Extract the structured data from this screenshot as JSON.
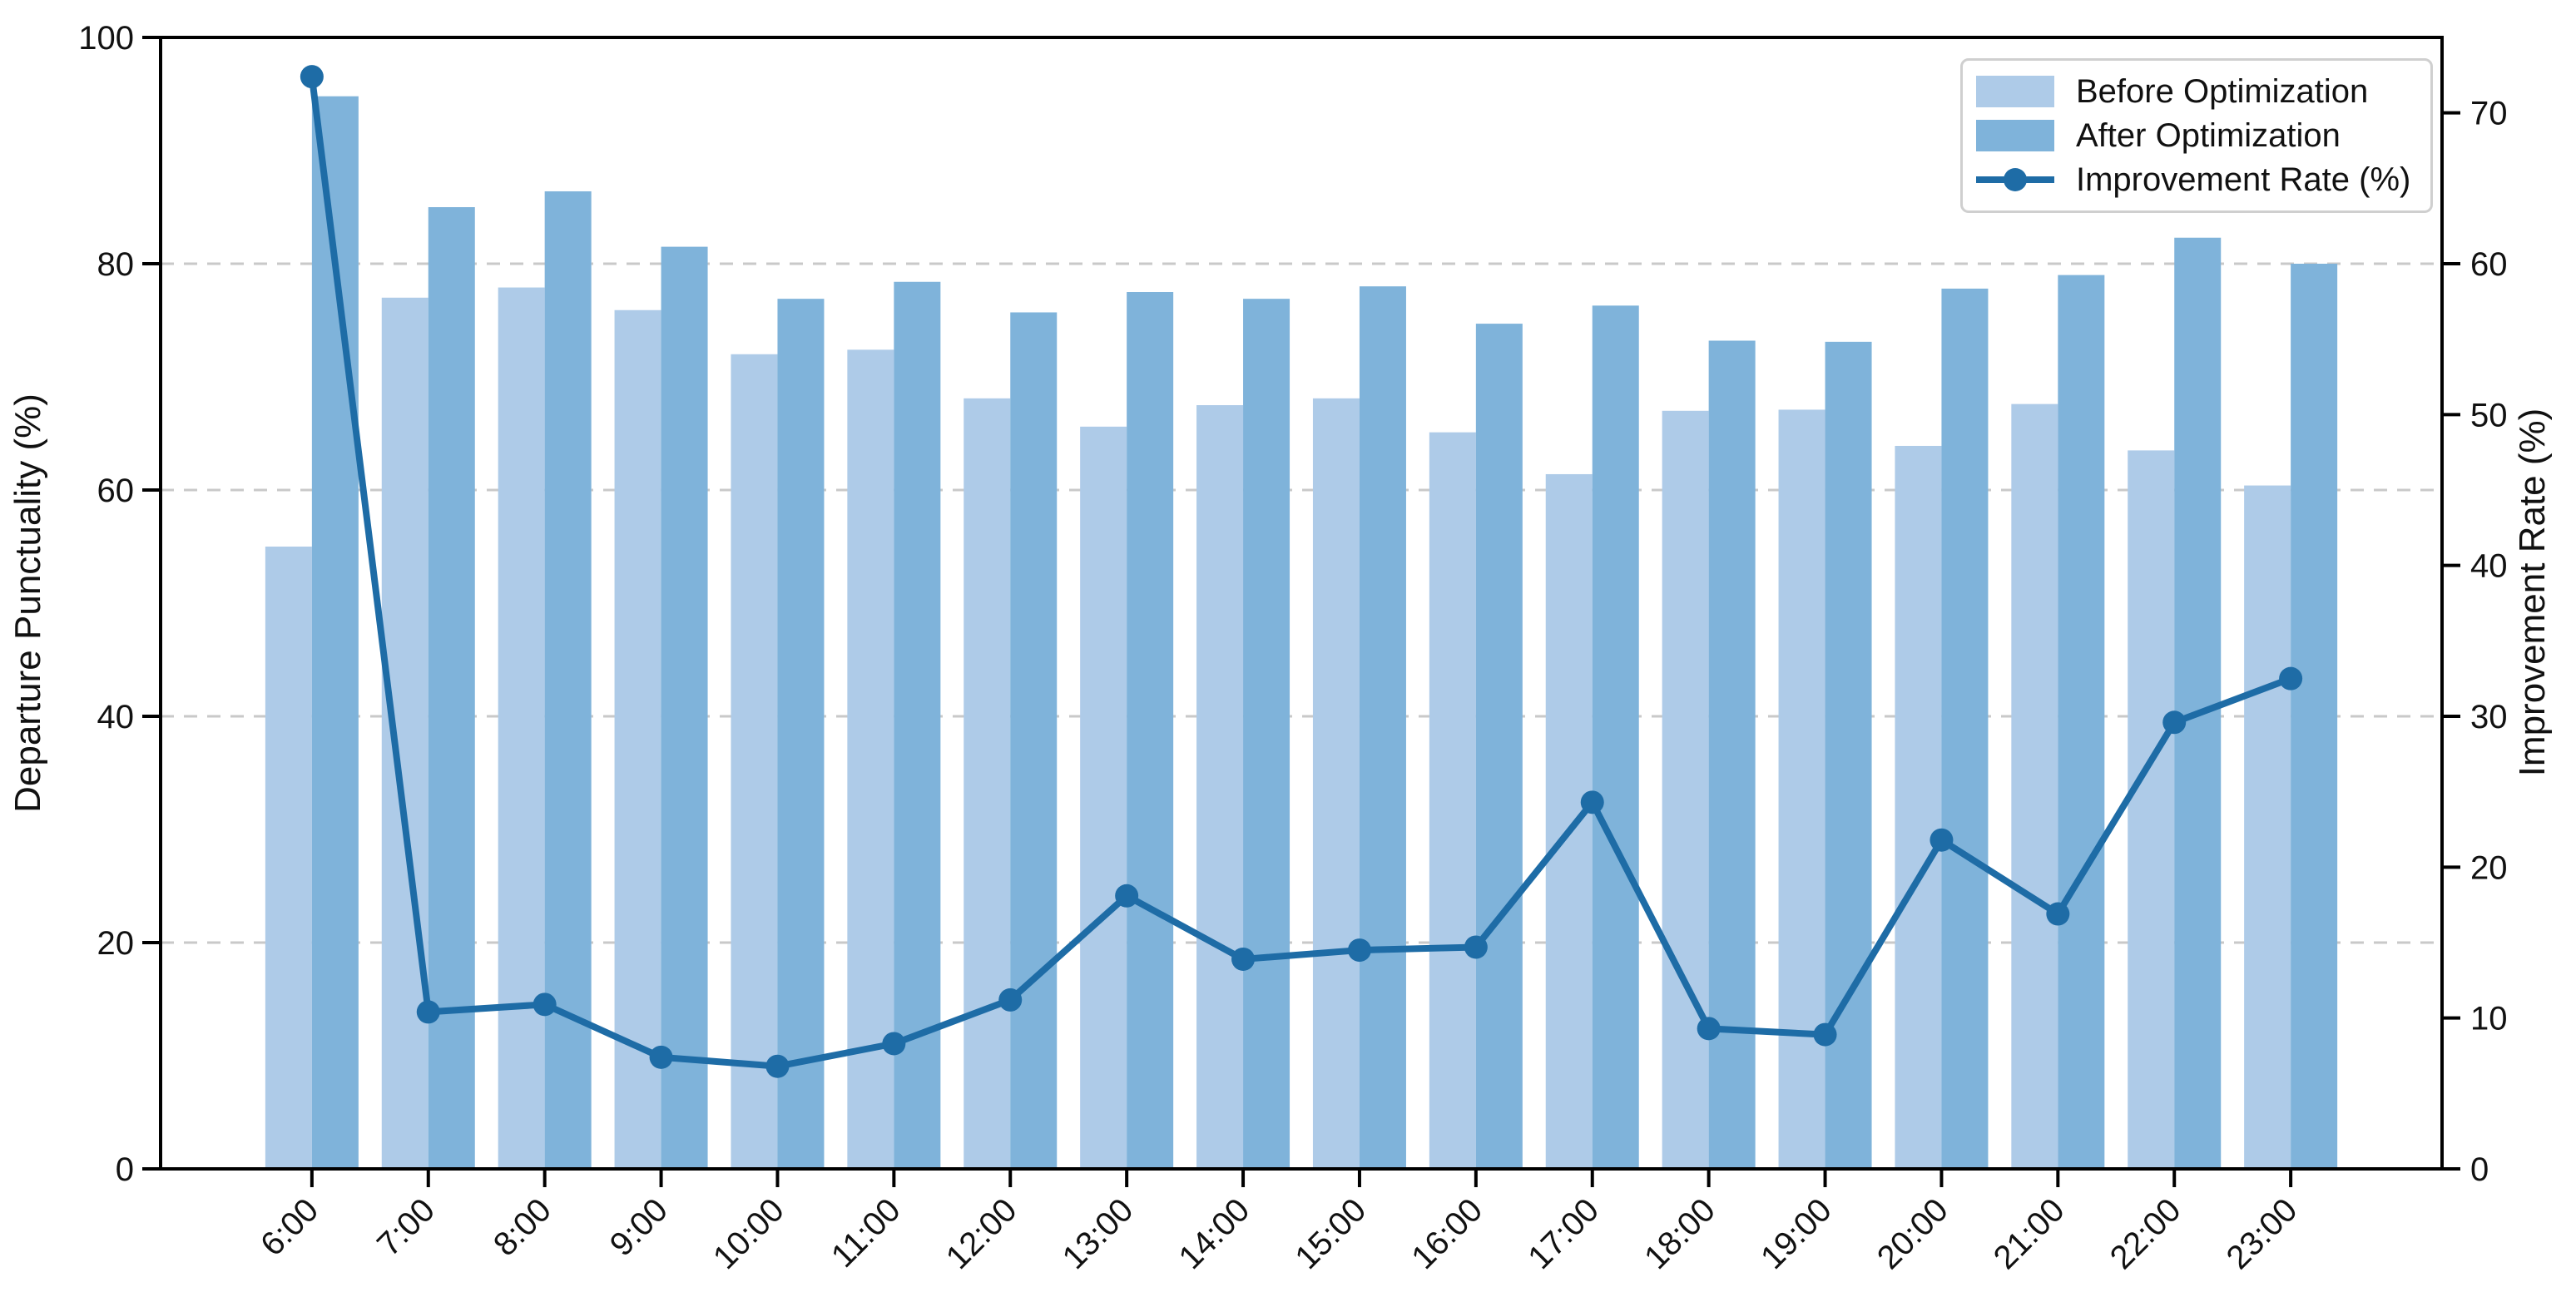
{
  "figure": {
    "background": "#ffffff",
    "text_color": "#111111"
  },
  "legend": {
    "items": [
      {
        "label": "Before Optimization",
        "type": "swatch",
        "color": "#aecbe8"
      },
      {
        "label": "After Optimization",
        "type": "swatch",
        "color": "#7fb3da"
      },
      {
        "label": "Improvement Rate (%)",
        "type": "line-marker",
        "color": "#1e6ca6"
      }
    ]
  },
  "chart_data": {
    "type": "bar",
    "subtype": "grouped-bars-with-line-overlay",
    "categories": [
      "6:00",
      "7:00",
      "8:00",
      "9:00",
      "10:00",
      "11:00",
      "12:00",
      "13:00",
      "14:00",
      "15:00",
      "16:00",
      "17:00",
      "18:00",
      "19:00",
      "20:00",
      "21:00",
      "22:00",
      "23:00"
    ],
    "series": [
      {
        "name": "Before Optimization",
        "type": "bar",
        "axis": "left",
        "color": "#aecbe8",
        "values": [
          55.0,
          77.0,
          77.9,
          75.9,
          72.0,
          72.4,
          68.1,
          65.6,
          67.5,
          68.1,
          65.1,
          61.4,
          67.0,
          67.1,
          63.9,
          67.6,
          63.5,
          60.4
        ]
      },
      {
        "name": "After Optimization",
        "type": "bar",
        "axis": "left",
        "color": "#7fb3da",
        "values": [
          94.8,
          85.0,
          86.4,
          81.5,
          76.9,
          78.4,
          75.7,
          77.5,
          76.9,
          78.0,
          74.7,
          76.3,
          73.2,
          73.1,
          77.8,
          79.0,
          82.3,
          80.0
        ]
      },
      {
        "name": "Improvement Rate (%)",
        "type": "line",
        "axis": "right",
        "color": "#1e6ca6",
        "marker": "circle",
        "values": [
          72.4,
          10.4,
          10.9,
          7.4,
          6.8,
          8.3,
          11.2,
          18.1,
          13.9,
          14.5,
          14.7,
          24.3,
          9.3,
          8.9,
          21.8,
          16.9,
          29.6,
          32.5
        ]
      }
    ],
    "left_axis": {
      "label": "Departure Punctuality (%)",
      "min": 0,
      "max": 100,
      "ticks": [
        0,
        20,
        40,
        60,
        80,
        100
      ]
    },
    "right_axis": {
      "label": "Improvement Rate (%)",
      "min": 0,
      "max": 75,
      "ticks": [
        0,
        10,
        20,
        30,
        40,
        50,
        60,
        70
      ]
    },
    "x_axis": {
      "tick_rotation_deg": 45
    },
    "grid": {
      "show": true,
      "on_left_ticks": [
        20,
        40,
        60,
        80
      ],
      "style": "dashed",
      "color": "#c9c9c9"
    },
    "legend_position": "upper right",
    "frame": {
      "spine_color": "#000000",
      "spine_width": 4
    }
  }
}
